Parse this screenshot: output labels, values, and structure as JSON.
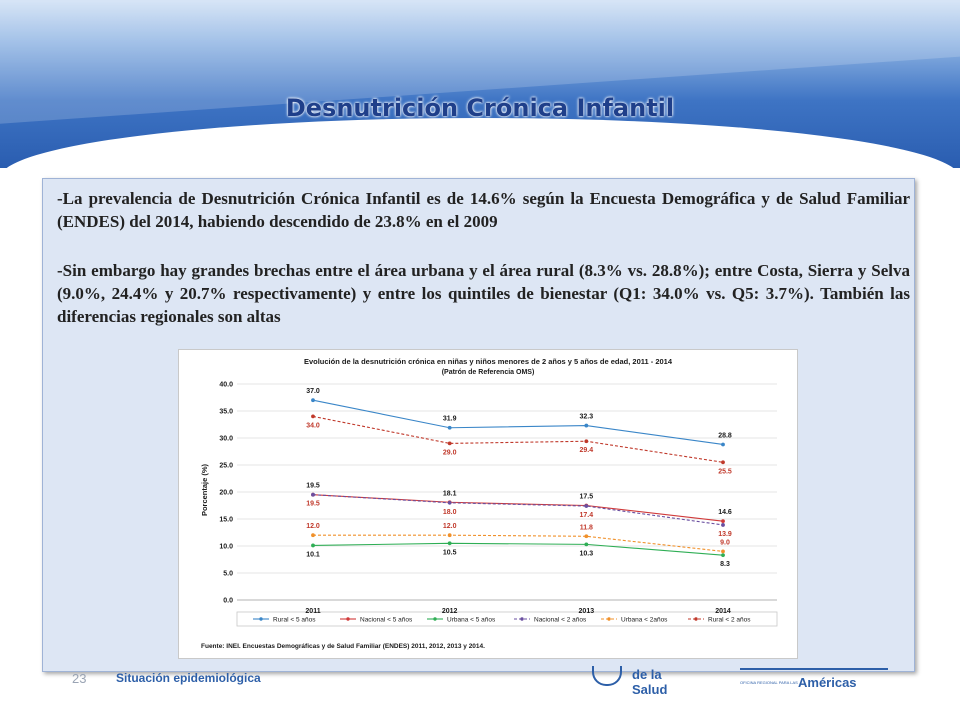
{
  "slide": {
    "title": "Desnutrición Crónica Infantil",
    "paragraph1": "-La prevalencia de Desnutrición Crónica Infantil es de 14.6% según la Encuesta Demográfica y de Salud Familiar (ENDES) del 2014,  habiendo descendido de 23.8% en el 2009",
    "paragraph2": "-Sin embargo hay grandes brechas entre el área urbana y el área rural (8.3% vs. 28.8%); entre Costa, Sierra y Selva (9.0%, 24.4% y 20.7% respectivamente) y entre los quintiles de bienestar (Q1: 34.0% vs. Q5: 3.7%). También las diferencias regionales son altas"
  },
  "footer": {
    "slide_number": "23",
    "section": "Situación epidemiológica",
    "logo1_text": "de la Salud",
    "logo2_small": "OFICINA REGIONAL PARA LAS",
    "logo2_big": "Américas"
  },
  "colors": {
    "header_dark": "#2a5db0",
    "title": "#1f3f8a",
    "panel": "#dde6f4"
  },
  "chart_data": {
    "type": "line",
    "title": "Evolución de la desnutrición crónica en niñas y niños menores de 2 años y 5 años de edad, 2011 - 2014",
    "subtitle": "(Patrón de Referencia OMS)",
    "ylabel": "Porcentaje (%)",
    "xlabel": "",
    "categories": [
      "2011",
      "2012",
      "2013",
      "2014"
    ],
    "ylim": [
      0,
      40
    ],
    "yticks": [
      "0.0",
      "5.0",
      "10.0",
      "15.0",
      "20.0",
      "25.0",
      "30.0",
      "35.0",
      "40.0"
    ],
    "grid": true,
    "legend_position": "bottom",
    "source": "Fuente: INEI. Encuestas Demográficas y de Salud Familiar (ENDES) 2011, 2012, 2013 y 2014.",
    "series": [
      {
        "name": "Rural < 5 años",
        "values": [
          37.0,
          31.9,
          32.3,
          28.8
        ],
        "color": "#3a86c8",
        "dashed": false,
        "label_color": "#1a1a1a",
        "labels_above": true
      },
      {
        "name": "Nacional < 5 años",
        "values": [
          19.5,
          18.1,
          17.5,
          14.6
        ],
        "color": "#d03a3a",
        "dashed": false,
        "label_color": "#1a1a1a",
        "labels_above": true
      },
      {
        "name": "Urbana < 5 años",
        "values": [
          10.1,
          10.5,
          10.3,
          8.3
        ],
        "color": "#2fae55",
        "dashed": false,
        "label_color": "#1a1a1a",
        "labels_above": false
      },
      {
        "name": "Nacional < 2 años",
        "values": [
          19.5,
          18.0,
          17.4,
          13.9
        ],
        "color": "#6a4fa0",
        "dashed": true,
        "label_color": "#c0392b",
        "labels_above": false
      },
      {
        "name": "Urbana < 2años",
        "values": [
          12.0,
          12.0,
          11.8,
          9.0
        ],
        "color": "#f0902a",
        "dashed": true,
        "label_color": "#c0392b",
        "labels_above": true
      },
      {
        "name": "Rural < 2 años",
        "values": [
          34.0,
          29.0,
          29.4,
          25.5
        ],
        "color": "#c0392b",
        "dashed": true,
        "label_color": "#c0392b",
        "labels_above": false
      }
    ]
  }
}
